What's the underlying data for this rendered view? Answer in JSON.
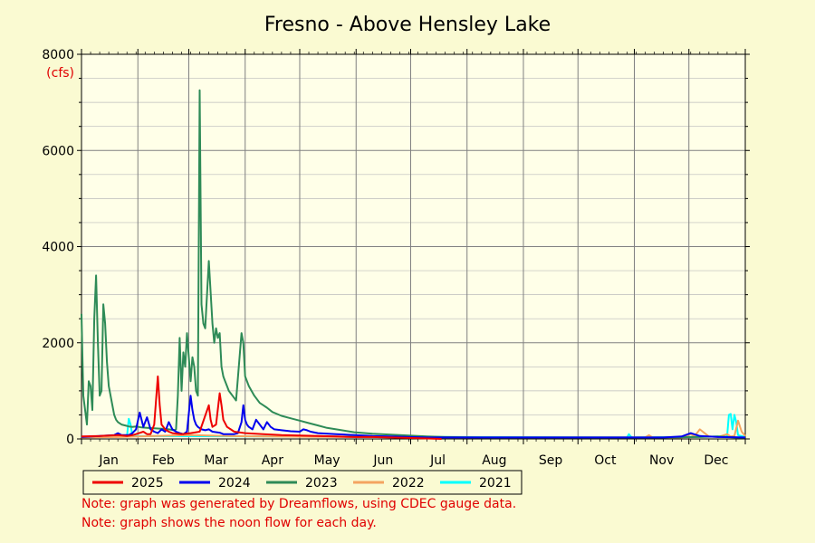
{
  "chart_data": {
    "type": "line",
    "title": "Fresno - Above Hensley Lake",
    "unit_label": "(cfs)",
    "xlabel": "",
    "ylabel": "",
    "ylim": [
      0,
      8000
    ],
    "y_ticks": [
      0,
      2000,
      4000,
      6000,
      8000
    ],
    "xlim": [
      0,
      365
    ],
    "month_ticks": [
      {
        "label": "Jan",
        "day": 15
      },
      {
        "label": "Feb",
        "day": 45
      },
      {
        "label": "Mar",
        "day": 74
      },
      {
        "label": "Apr",
        "day": 105
      },
      {
        "label": "May",
        "day": 135
      },
      {
        "label": "Jun",
        "day": 166
      },
      {
        "label": "Jul",
        "day": 196
      },
      {
        "label": "Aug",
        "day": 227
      },
      {
        "label": "Sep",
        "day": 258
      },
      {
        "label": "Oct",
        "day": 288
      },
      {
        "label": "Nov",
        "day": 319
      },
      {
        "label": "Dec",
        "day": 349
      }
    ],
    "grid": true,
    "legend_position": "bottom",
    "series": [
      {
        "name": "2023",
        "color": "#2e8b57",
        "x": [
          0,
          1,
          2,
          3,
          4,
          5,
          6,
          7,
          8,
          9,
          10,
          11,
          12,
          13,
          14,
          15,
          16,
          17,
          18,
          19,
          20,
          22,
          24,
          26,
          28,
          30,
          33,
          36,
          40,
          44,
          48,
          51,
          52,
          53,
          54,
          55,
          56,
          57,
          58,
          60,
          61,
          62,
          63,
          64,
          65,
          66,
          67,
          68,
          70,
          72,
          73,
          74,
          75,
          76,
          77,
          78,
          79,
          80,
          81,
          82,
          83,
          84,
          85,
          88,
          89,
          90,
          92,
          95,
          98,
          100,
          102,
          105,
          110,
          115,
          120,
          125,
          130,
          135,
          140,
          150,
          160,
          170,
          180,
          190,
          200,
          220,
          250,
          280,
          300,
          320,
          340,
          350,
          360,
          365
        ],
        "values": [
          2600,
          900,
          600,
          300,
          1200,
          1100,
          600,
          2500,
          3400,
          2000,
          900,
          1000,
          2800,
          2400,
          1600,
          1100,
          900,
          700,
          500,
          400,
          350,
          300,
          280,
          260,
          250,
          260,
          240,
          230,
          220,
          210,
          200,
          180,
          200,
          900,
          2100,
          1000,
          1800,
          1500,
          2200,
          1200,
          1700,
          1500,
          1000,
          900,
          7250,
          2800,
          2400,
          2300,
          3700,
          2400,
          2000,
          2300,
          2100,
          2200,
          1500,
          1300,
          1200,
          1100,
          1000,
          950,
          900,
          850,
          800,
          2200,
          2000,
          1300,
          1100,
          900,
          750,
          700,
          650,
          560,
          480,
          430,
          380,
          330,
          280,
          230,
          200,
          140,
          110,
          90,
          70,
          50,
          40,
          30,
          30,
          30,
          30,
          30,
          40,
          50,
          30,
          30
        ]
      },
      {
        "name": "2024",
        "color": "#0000ee",
        "x": [
          0,
          10,
          18,
          20,
          22,
          26,
          28,
          30,
          32,
          34,
          36,
          38,
          40,
          42,
          44,
          46,
          48,
          50,
          52,
          54,
          56,
          58,
          60,
          61,
          62,
          63,
          64,
          66,
          68,
          70,
          72,
          76,
          78,
          80,
          82,
          84,
          86,
          88,
          89,
          90,
          91,
          92,
          94,
          95,
          96,
          98,
          100,
          102,
          104,
          106,
          110,
          115,
          120,
          122,
          124,
          126,
          130,
          140,
          150,
          160,
          170,
          180,
          190,
          200,
          220,
          250,
          280,
          300,
          320,
          330,
          335,
          340,
          350,
          365
        ],
        "values": [
          40,
          60,
          80,
          120,
          80,
          80,
          120,
          200,
          550,
          250,
          450,
          200,
          150,
          120,
          200,
          150,
          350,
          200,
          150,
          120,
          100,
          150,
          900,
          600,
          400,
          300,
          250,
          200,
          180,
          200,
          150,
          130,
          100,
          100,
          100,
          100,
          120,
          350,
          700,
          400,
          300,
          250,
          200,
          300,
          400,
          300,
          200,
          350,
          250,
          200,
          180,
          160,
          150,
          200,
          180,
          150,
          120,
          100,
          80,
          60,
          50,
          40,
          30,
          30,
          30,
          30,
          30,
          30,
          30,
          50,
          120,
          60,
          40,
          30
        ]
      },
      {
        "name": "2025",
        "color": "#ee0000",
        "x": [
          0,
          10,
          20,
          25,
          28,
          30,
          34,
          36,
          38,
          40,
          42,
          43,
          44,
          46,
          48,
          50,
          55,
          60,
          65,
          70,
          71,
          72,
          74,
          76,
          77,
          78,
          80,
          84,
          90,
          100,
          110,
          120,
          130,
          140,
          150,
          160,
          170,
          180,
          190,
          198
        ],
        "values": [
          50,
          60,
          80,
          60,
          80,
          100,
          150,
          100,
          100,
          300,
          1300,
          700,
          300,
          200,
          150,
          120,
          100,
          120,
          150,
          700,
          400,
          250,
          300,
          950,
          700,
          400,
          250,
          150,
          120,
          100,
          80,
          70,
          60,
          50,
          40,
          40,
          30,
          20,
          10,
          0
        ]
      },
      {
        "name": "2022",
        "color": "#f4a460",
        "x": [
          0,
          20,
          40,
          60,
          80,
          100,
          150,
          200,
          250,
          300,
          310,
          312,
          314,
          330,
          335,
          337,
          340,
          345,
          350,
          355,
          357,
          359,
          361,
          363,
          365
        ],
        "values": [
          30,
          40,
          60,
          80,
          60,
          50,
          40,
          30,
          30,
          30,
          30,
          80,
          30,
          30,
          100,
          50,
          200,
          50,
          40,
          100,
          50,
          60,
          380,
          150,
          60
        ]
      },
      {
        "name": "2021",
        "color": "#00ffff",
        "x": [
          25,
          26,
          27,
          28,
          300,
          301,
          302,
          303,
          355,
          356,
          357,
          358,
          359,
          360,
          361,
          365
        ],
        "values": [
          50,
          420,
          300,
          60,
          30,
          100,
          50,
          30,
          50,
          500,
          520,
          200,
          500,
          350,
          80,
          40
        ]
      }
    ],
    "series_order": [
      "2025",
      "2024",
      "2023",
      "2022",
      "2021"
    ]
  },
  "legend": {
    "entries": [
      {
        "label": "2025",
        "color": "#ee0000"
      },
      {
        "label": "2024",
        "color": "#0000ee"
      },
      {
        "label": "2023",
        "color": "#2e8b57"
      },
      {
        "label": "2022",
        "color": "#f4a460"
      },
      {
        "label": "2021",
        "color": "#00ffff"
      }
    ]
  },
  "notes": {
    "note1": "Note: graph was generated by Dreamflows, using CDEC gauge data.",
    "note2": "Note: graph shows the noon flow for each day."
  }
}
